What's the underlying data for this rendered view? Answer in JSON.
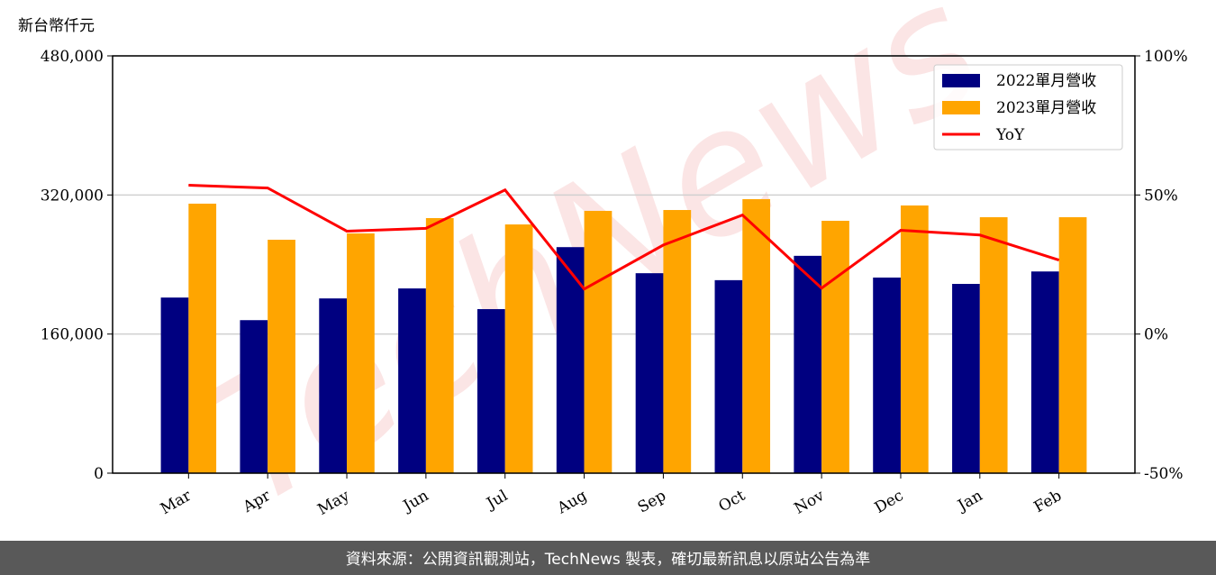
{
  "chart_data": {
    "type": "bar_line",
    "y_label": "新台幣仟元",
    "watermark": "TechNews",
    "footer": "資料來源：公開資訊觀測站，TechNews 製表，確切最新訊息以原站公告為準",
    "categories": [
      "Mar",
      "Apr",
      "May",
      "Jun",
      "Jul",
      "Aug",
      "Sep",
      "Oct",
      "Nov",
      "Dec",
      "Jan",
      "Feb"
    ],
    "series": [
      {
        "name": "2022單月營收",
        "type": "bar",
        "color": "#000080",
        "values": [
          202000,
          176000,
          201000,
          212500,
          188700,
          260000,
          230000,
          222000,
          250000,
          225000,
          217700,
          232000
        ]
      },
      {
        "name": "2023單月營收",
        "type": "bar",
        "color": "#ffa500",
        "values": [
          310000,
          268500,
          275800,
          293400,
          286100,
          301700,
          302700,
          315200,
          290300,
          307900,
          294400,
          294400
        ]
      },
      {
        "name": "YoY",
        "type": "line",
        "axis": "y2",
        "color": "#ff0000",
        "values": [
          53.5,
          52.5,
          37,
          38,
          51.8,
          16.2,
          32,
          42.8,
          16.5,
          37.3,
          35.6,
          26.6
        ]
      }
    ],
    "ylim": [
      0,
      480000
    ],
    "yticks": [
      {
        "value": 0,
        "label": "0"
      },
      {
        "value": 160000,
        "label": "160,000"
      },
      {
        "value": 320000,
        "label": "320,000"
      },
      {
        "value": 480000,
        "label": "480,000"
      }
    ],
    "y2lim": [
      -50,
      100
    ],
    "y2ticks": [
      {
        "value": -50,
        "label": "-50%"
      },
      {
        "value": 0,
        "label": "0%"
      },
      {
        "value": 50,
        "label": "50%"
      },
      {
        "value": 100,
        "label": "100%"
      }
    ],
    "grid": true,
    "legend": "upper right"
  }
}
